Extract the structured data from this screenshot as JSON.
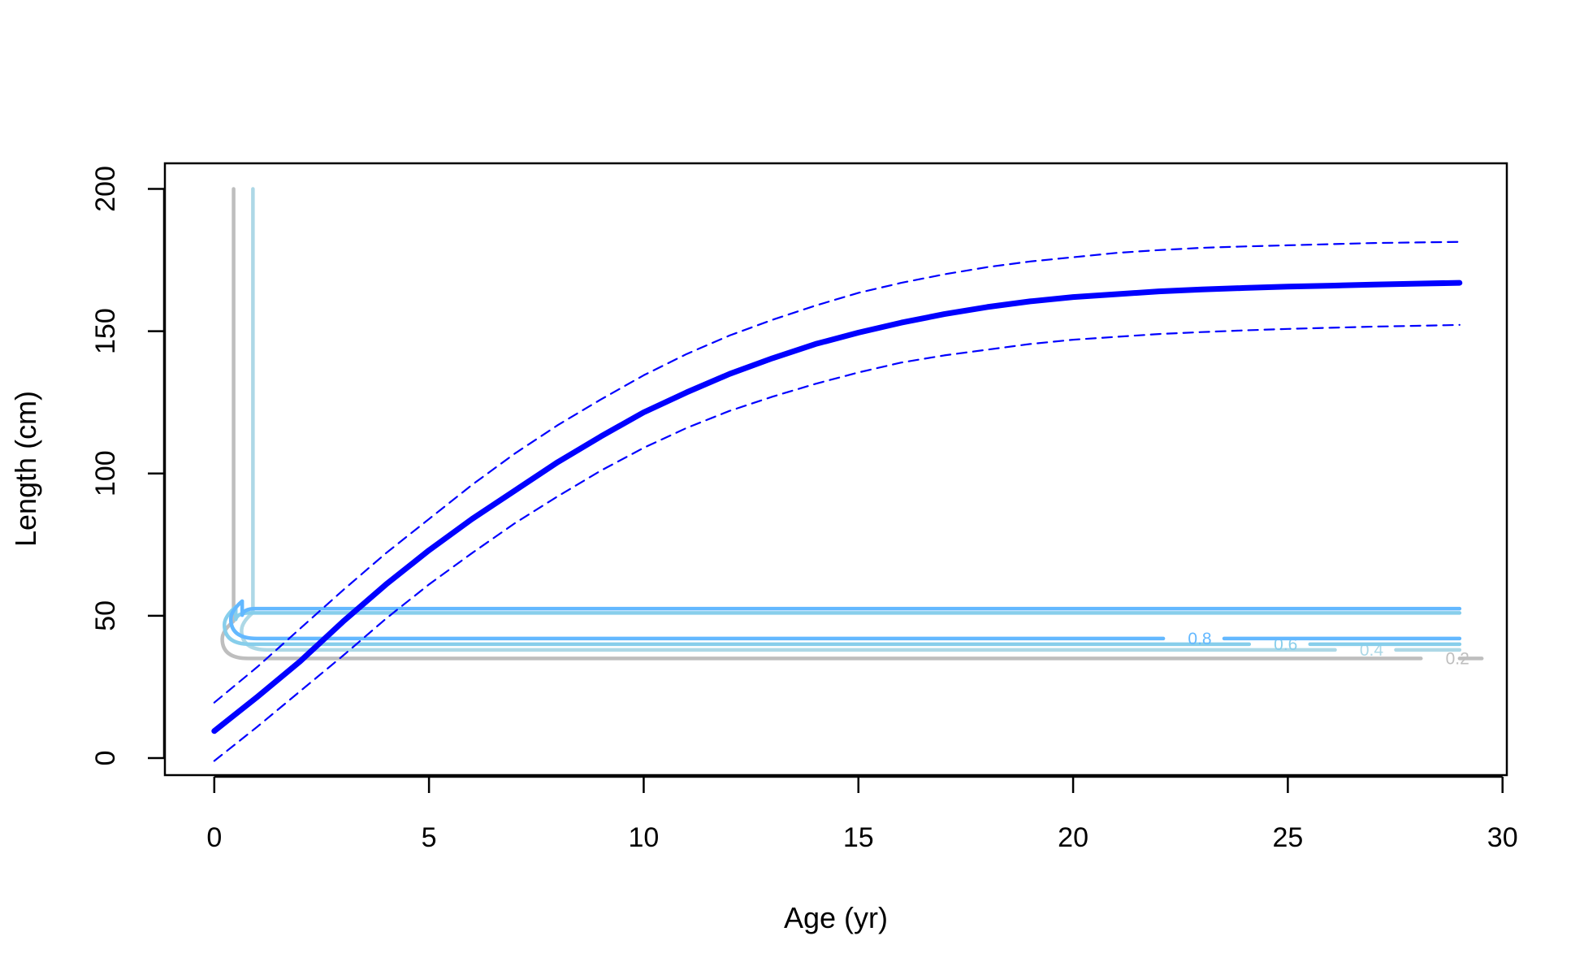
{
  "chart_data": {
    "type": "line",
    "xlabel": "Age (yr)",
    "ylabel": "Length (cm)",
    "xlim": [
      -1.15,
      30.1
    ],
    "ylim": [
      -6,
      209
    ],
    "x_ticks": [
      {
        "value": 0,
        "label": "0"
      },
      {
        "value": 5,
        "label": "5"
      },
      {
        "value": 10,
        "label": "10"
      },
      {
        "value": 15,
        "label": "15"
      },
      {
        "value": 20,
        "label": "20"
      },
      {
        "value": 25,
        "label": "25"
      },
      {
        "value": 30,
        "label": "30"
      }
    ],
    "y_ticks": [
      {
        "value": 0,
        "label": "0"
      },
      {
        "value": 50,
        "label": "50"
      },
      {
        "value": 100,
        "label": "100"
      },
      {
        "value": 150,
        "label": "150"
      },
      {
        "value": 200,
        "label": "200"
      }
    ],
    "grid": false,
    "legend": "none",
    "series": [
      {
        "role": "mean",
        "color": "#0000ff",
        "style": "solid-thick",
        "x": [
          0,
          1,
          2,
          3,
          4,
          5,
          6,
          7,
          8,
          9,
          10,
          11,
          12,
          13,
          14,
          15,
          16,
          17,
          18,
          19,
          20,
          21,
          22,
          23,
          24,
          25,
          26,
          27,
          28,
          29
        ],
        "y": [
          9.5,
          21.5,
          34,
          48,
          61,
          73,
          84,
          94,
          104,
          113,
          121.5,
          128.5,
          135,
          140.5,
          145.5,
          149.5,
          153,
          156,
          158.5,
          160.5,
          162,
          163,
          164,
          164.7,
          165.2,
          165.7,
          166,
          166.4,
          166.7,
          167
        ]
      },
      {
        "role": "upper",
        "color": "#0000ff",
        "style": "dashed",
        "x": [
          0,
          1,
          2,
          3,
          4,
          5,
          6,
          7,
          8,
          9,
          10,
          11,
          12,
          13,
          14,
          15,
          16,
          17,
          18,
          19,
          20,
          21,
          22,
          23,
          24,
          25,
          26,
          27,
          28,
          29
        ],
        "y": [
          19.5,
          32,
          45.5,
          59,
          72,
          84,
          96,
          107,
          117,
          126,
          134.5,
          142,
          148.5,
          154,
          159,
          163.5,
          167,
          170,
          172.5,
          174.5,
          176,
          177.5,
          178.5,
          179.3,
          179.8,
          180.2,
          180.6,
          181,
          181.2,
          181.4
        ]
      },
      {
        "role": "lower",
        "color": "#0000ff",
        "style": "dashed",
        "x": [
          0,
          1,
          2,
          3,
          4,
          5,
          6,
          7,
          8,
          9,
          10,
          11,
          12,
          13,
          14,
          15,
          16,
          17,
          18,
          19,
          20,
          21,
          22,
          23,
          24,
          25,
          26,
          27,
          28,
          29
        ],
        "y": [
          -1,
          11,
          23.5,
          36,
          49,
          61,
          72,
          82.5,
          92,
          101,
          109,
          116,
          122,
          127,
          131.5,
          135.5,
          139,
          141.5,
          143.5,
          145.5,
          147,
          148,
          149,
          149.7,
          150.3,
          150.8,
          151.2,
          151.6,
          151.9,
          152.2
        ]
      }
    ],
    "contours": [
      {
        "level": "0.2",
        "label": "0.2",
        "color": "#bebebe",
        "x_left": 0.45,
        "y_low": 35,
        "y_high": 200,
        "x_right": 28.1,
        "label_x": 28.95
      },
      {
        "level": "0.4",
        "label": "0.4",
        "color": "#add8e6",
        "x_left": 0.9,
        "y_low": 38,
        "y_high": 200,
        "x_right": 26.1,
        "label_x": 26.95
      },
      {
        "level": "0.6",
        "label": "0.6",
        "color": "#87ceeb",
        "x_left": 0.5,
        "y_low": 40,
        "y_high": 51,
        "x_right": 24.1,
        "label_x": 24.95
      },
      {
        "level": "0.8",
        "label": "0.8",
        "color": "#63b8ff",
        "x_left": 0.65,
        "y_low": 42,
        "y_high": 52.5,
        "x_right": 22.1,
        "label_x": 22.95
      }
    ]
  }
}
